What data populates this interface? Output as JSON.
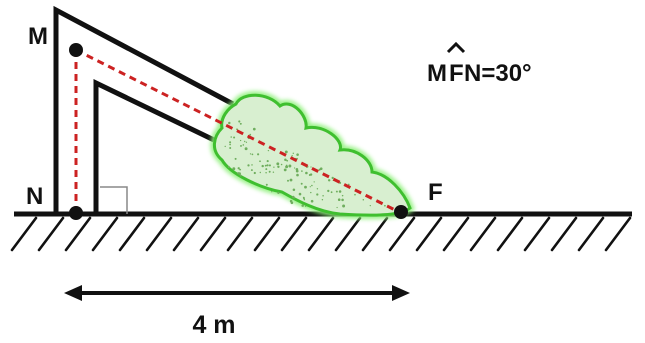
{
  "labels": {
    "m": "M",
    "n": "N",
    "f": "F",
    "angle_prefix": "M",
    "angle_vertex": "F",
    "angle_suffix": "N=30°",
    "distance": "4 m"
  },
  "colors": {
    "ink": "#111111",
    "path": "#d02020",
    "bush_fill": "#d8efd0",
    "bush_edge": "#4ccc3a",
    "background": "#ffffff"
  }
}
